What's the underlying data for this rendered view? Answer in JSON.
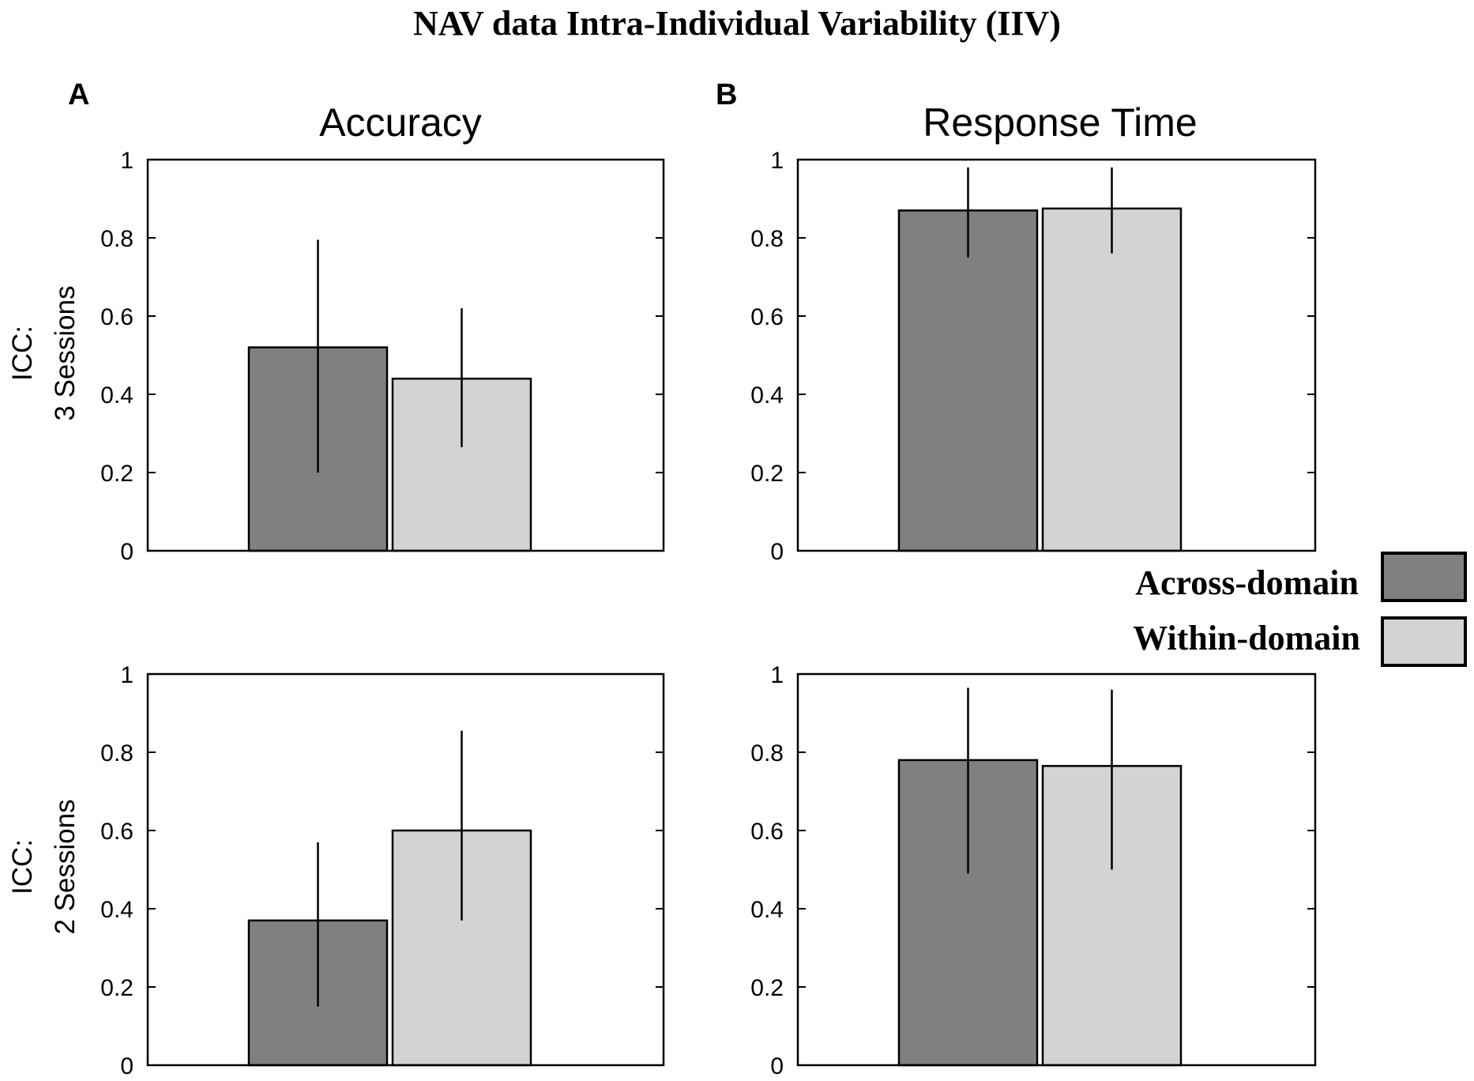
{
  "figure": {
    "title": "NAV data Intra-Individual Variability (IIV)",
    "panel_labels": [
      "A",
      "B"
    ],
    "column_titles": [
      "Accuracy",
      "Response Time"
    ],
    "row_labels": [
      [
        "ICC:",
        "3 Sessions"
      ],
      [
        "ICC:",
        "2 Sessions"
      ]
    ]
  },
  "legend": {
    "items": [
      {
        "label": "Across-domain",
        "color": "#808080"
      },
      {
        "label": "Within-domain",
        "color": "#d3d3d3"
      }
    ]
  },
  "y_tick_labels": [
    "0",
    "0.2",
    "0.4",
    "0.6",
    "0.8",
    "1"
  ],
  "chart_data": [
    {
      "type": "bar",
      "panel": "A",
      "title": "Accuracy",
      "ylabel": "ICC: 3 Sessions",
      "ylim": [
        0,
        1
      ],
      "yticks": [
        0,
        0.2,
        0.4,
        0.6,
        0.8,
        1
      ],
      "series": [
        {
          "name": "Across-domain",
          "value": 0.52,
          "err_low": 0.2,
          "err_high": 0.795,
          "color": "#808080"
        },
        {
          "name": "Within-domain",
          "value": 0.44,
          "err_low": 0.265,
          "err_high": 0.62,
          "color": "#d3d3d3"
        }
      ]
    },
    {
      "type": "bar",
      "panel": "B",
      "title": "Response Time",
      "ylabel": "",
      "ylim": [
        0,
        1
      ],
      "yticks": [
        0,
        0.2,
        0.4,
        0.6,
        0.8,
        1
      ],
      "series": [
        {
          "name": "Across-domain",
          "value": 0.87,
          "err_low": 0.75,
          "err_high": 0.98,
          "color": "#808080"
        },
        {
          "name": "Within-domain",
          "value": 0.875,
          "err_low": 0.76,
          "err_high": 0.98,
          "color": "#d3d3d3"
        }
      ]
    },
    {
      "type": "bar",
      "panel": "A",
      "title": "",
      "ylabel": "ICC: 2 Sessions",
      "ylim": [
        0,
        1
      ],
      "yticks": [
        0,
        0.2,
        0.4,
        0.6,
        0.8,
        1
      ],
      "series": [
        {
          "name": "Across-domain",
          "value": 0.37,
          "err_low": 0.15,
          "err_high": 0.57,
          "color": "#808080"
        },
        {
          "name": "Within-domain",
          "value": 0.6,
          "err_low": 0.37,
          "err_high": 0.855,
          "color": "#d3d3d3"
        }
      ]
    },
    {
      "type": "bar",
      "panel": "B",
      "title": "",
      "ylabel": "",
      "ylim": [
        0,
        1
      ],
      "yticks": [
        0,
        0.2,
        0.4,
        0.6,
        0.8,
        1
      ],
      "series": [
        {
          "name": "Across-domain",
          "value": 0.78,
          "err_low": 0.49,
          "err_high": 0.965,
          "color": "#808080"
        },
        {
          "name": "Within-domain",
          "value": 0.765,
          "err_low": 0.5,
          "err_high": 0.96,
          "color": "#d3d3d3"
        }
      ]
    }
  ]
}
